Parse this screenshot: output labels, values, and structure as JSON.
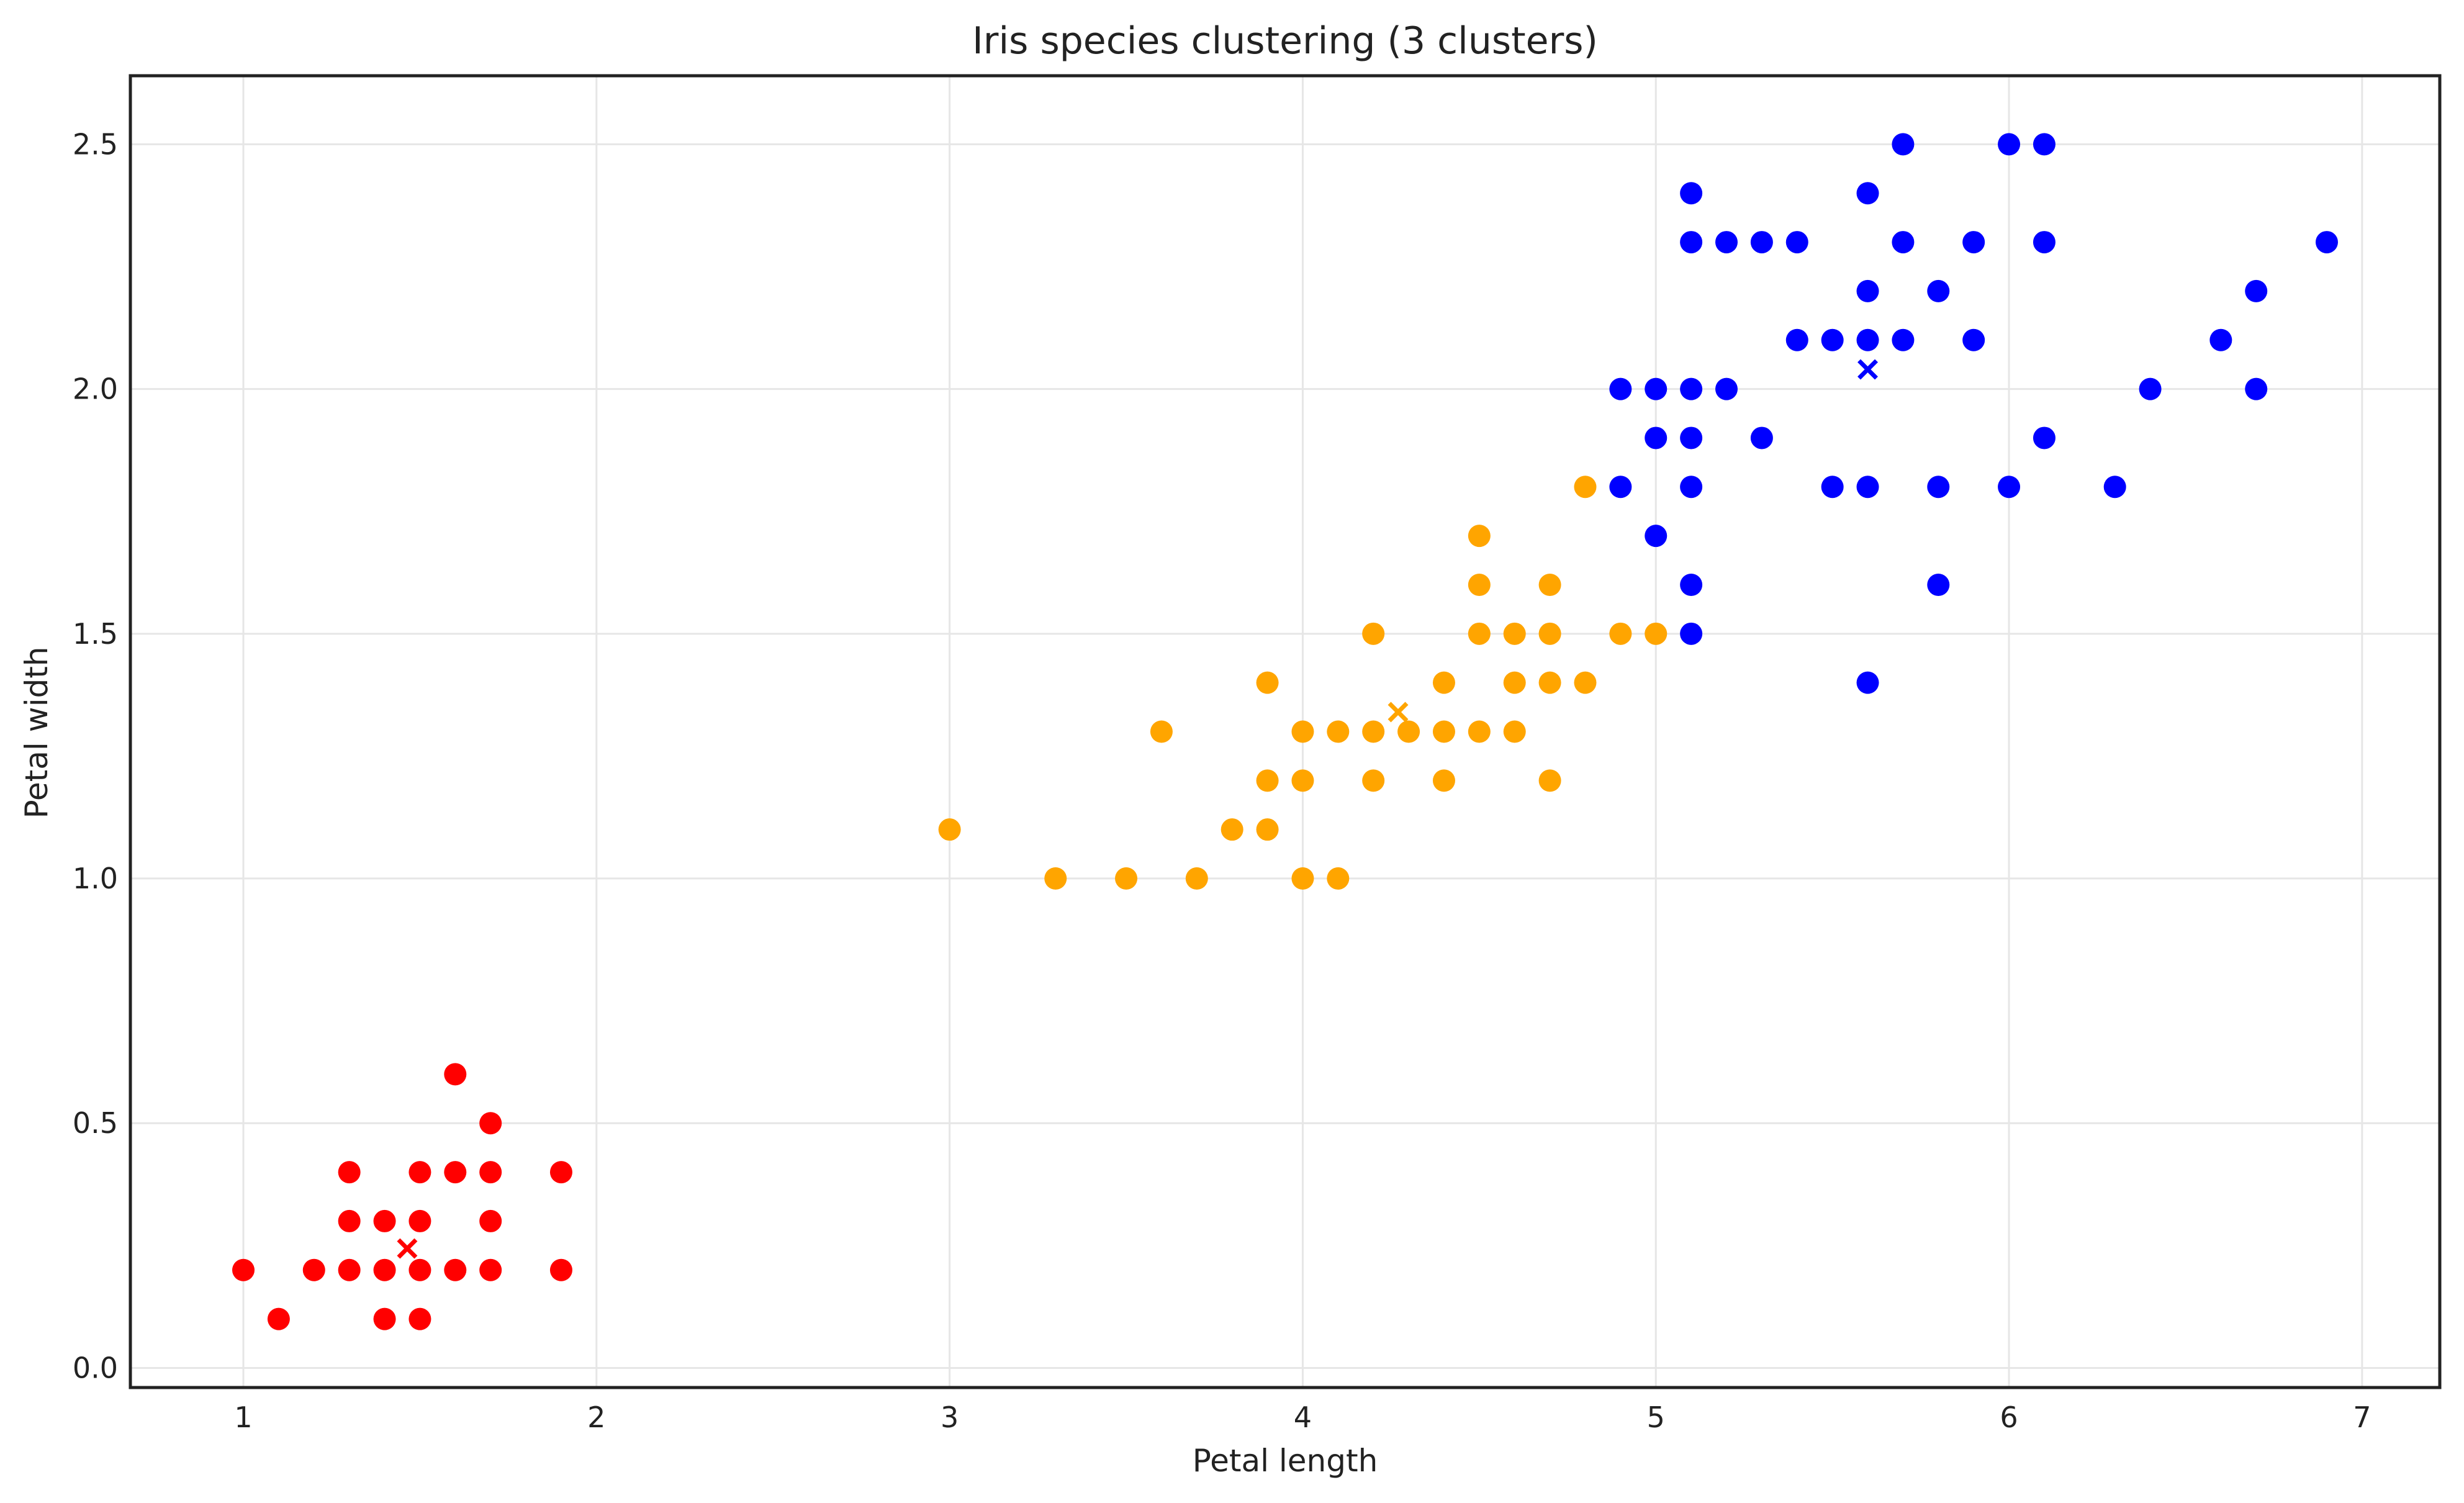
{
  "chart_data": {
    "type": "scatter",
    "title": "Iris species clustering (3 clusters)",
    "xlabel": "Petal length",
    "ylabel": "Petal width",
    "xlim": [
      0.68,
      7.22
    ],
    "ylim": [
      -0.04,
      2.64
    ],
    "xticks": [
      1,
      2,
      3,
      4,
      5,
      6,
      7
    ],
    "yticks": [
      0.0,
      0.5,
      1.0,
      1.5,
      2.0,
      2.5
    ],
    "xtick_labels": [
      "1",
      "2",
      "3",
      "4",
      "5",
      "6",
      "7"
    ],
    "ytick_labels": [
      "0.0",
      "0.5",
      "1.0",
      "1.5",
      "2.0",
      "2.5"
    ],
    "grid": true,
    "legend": false,
    "series": [
      {
        "color": "#ff0000",
        "points": [
          [
            1.0,
            0.2
          ],
          [
            1.1,
            0.1
          ],
          [
            1.2,
            0.2
          ],
          [
            1.3,
            0.2
          ],
          [
            1.3,
            0.3
          ],
          [
            1.3,
            0.4
          ],
          [
            1.4,
            0.1
          ],
          [
            1.4,
            0.2
          ],
          [
            1.4,
            0.3
          ],
          [
            1.5,
            0.1
          ],
          [
            1.5,
            0.2
          ],
          [
            1.5,
            0.3
          ],
          [
            1.5,
            0.4
          ],
          [
            1.6,
            0.2
          ],
          [
            1.6,
            0.4
          ],
          [
            1.6,
            0.6
          ],
          [
            1.7,
            0.2
          ],
          [
            1.7,
            0.3
          ],
          [
            1.7,
            0.4
          ],
          [
            1.7,
            0.5
          ],
          [
            1.9,
            0.2
          ],
          [
            1.9,
            0.4
          ]
        ],
        "centroid": [
          1.464,
          0.244
        ]
      },
      {
        "color": "#ffa500",
        "points": [
          [
            3.0,
            1.1
          ],
          [
            3.3,
            1.0
          ],
          [
            3.5,
            1.0
          ],
          [
            3.6,
            1.3
          ],
          [
            3.7,
            1.0
          ],
          [
            3.8,
            1.1
          ],
          [
            3.9,
            1.1
          ],
          [
            3.9,
            1.2
          ],
          [
            3.9,
            1.4
          ],
          [
            4.0,
            1.0
          ],
          [
            4.0,
            1.2
          ],
          [
            4.0,
            1.3
          ],
          [
            4.1,
            1.0
          ],
          [
            4.1,
            1.3
          ],
          [
            4.2,
            1.2
          ],
          [
            4.2,
            1.3
          ],
          [
            4.2,
            1.5
          ],
          [
            4.3,
            1.3
          ],
          [
            4.4,
            1.2
          ],
          [
            4.4,
            1.3
          ],
          [
            4.4,
            1.4
          ],
          [
            4.5,
            1.3
          ],
          [
            4.5,
            1.5
          ],
          [
            4.5,
            1.6
          ],
          [
            4.5,
            1.7
          ],
          [
            4.6,
            1.3
          ],
          [
            4.6,
            1.4
          ],
          [
            4.6,
            1.5
          ],
          [
            4.7,
            1.2
          ],
          [
            4.7,
            1.4
          ],
          [
            4.7,
            1.5
          ],
          [
            4.7,
            1.6
          ],
          [
            4.8,
            1.4
          ],
          [
            4.8,
            1.8
          ],
          [
            4.9,
            1.5
          ],
          [
            5.0,
            1.5
          ]
        ],
        "centroid": [
          4.27,
          1.34
        ]
      },
      {
        "color": "#0000ff",
        "points": [
          [
            4.9,
            1.8
          ],
          [
            4.9,
            2.0
          ],
          [
            5.0,
            1.7
          ],
          [
            5.0,
            1.9
          ],
          [
            5.0,
            2.0
          ],
          [
            5.1,
            1.5
          ],
          [
            5.1,
            1.6
          ],
          [
            5.1,
            1.8
          ],
          [
            5.1,
            1.9
          ],
          [
            5.1,
            2.0
          ],
          [
            5.1,
            2.3
          ],
          [
            5.1,
            2.4
          ],
          [
            5.2,
            2.0
          ],
          [
            5.2,
            2.3
          ],
          [
            5.3,
            1.9
          ],
          [
            5.3,
            2.3
          ],
          [
            5.4,
            2.1
          ],
          [
            5.4,
            2.3
          ],
          [
            5.5,
            1.8
          ],
          [
            5.5,
            2.1
          ],
          [
            5.6,
            1.4
          ],
          [
            5.6,
            1.8
          ],
          [
            5.6,
            2.1
          ],
          [
            5.6,
            2.2
          ],
          [
            5.6,
            2.4
          ],
          [
            5.7,
            2.1
          ],
          [
            5.7,
            2.3
          ],
          [
            5.7,
            2.5
          ],
          [
            5.8,
            1.6
          ],
          [
            5.8,
            1.8
          ],
          [
            5.8,
            2.2
          ],
          [
            5.9,
            2.1
          ],
          [
            5.9,
            2.3
          ],
          [
            6.0,
            1.8
          ],
          [
            6.0,
            2.5
          ],
          [
            6.1,
            1.9
          ],
          [
            6.1,
            2.3
          ],
          [
            6.1,
            2.5
          ],
          [
            6.3,
            1.8
          ],
          [
            6.4,
            2.0
          ],
          [
            6.6,
            2.1
          ],
          [
            6.7,
            2.0
          ],
          [
            6.7,
            2.2
          ],
          [
            6.9,
            2.3
          ]
        ],
        "centroid": [
          5.6,
          2.04
        ]
      }
    ]
  }
}
